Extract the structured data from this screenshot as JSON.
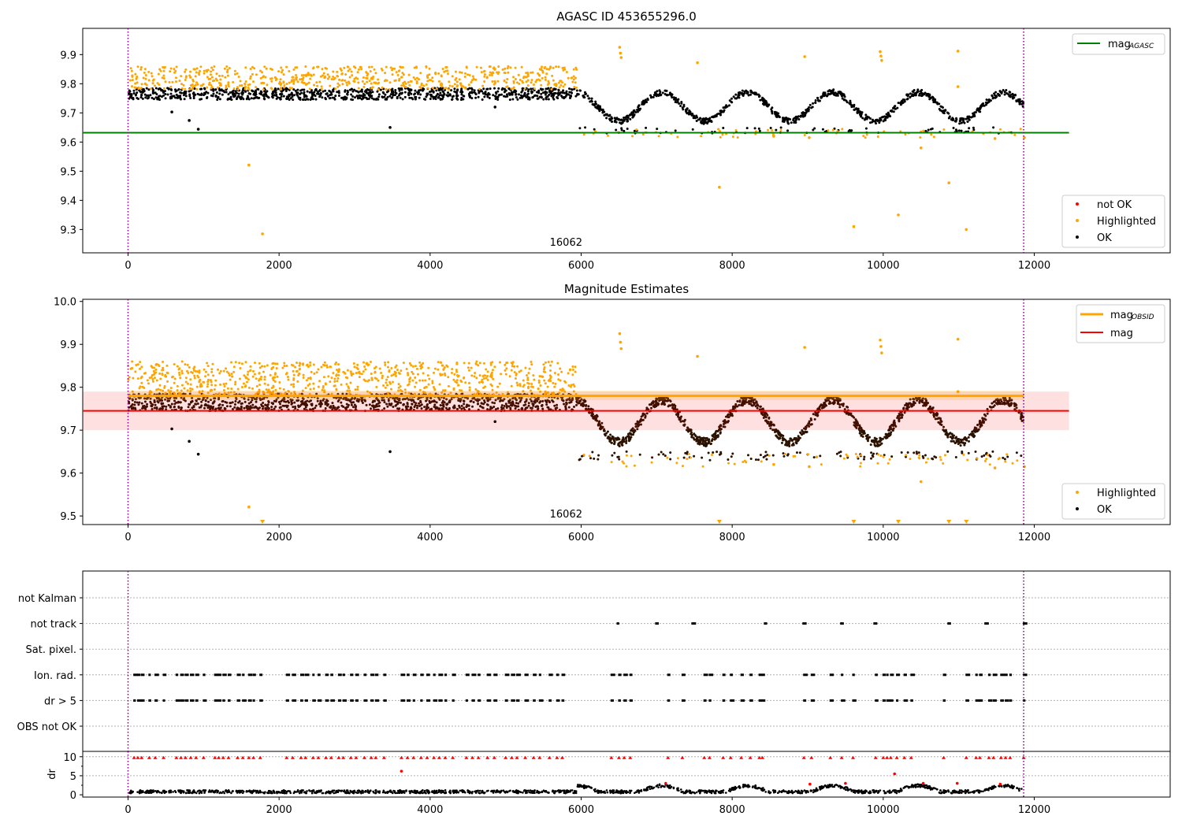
{
  "chart_data": [
    {
      "type": "scatter",
      "title": "AGASC ID 453655296.0",
      "x_ticks": [
        0,
        2000,
        4000,
        6000,
        8000,
        10000,
        12000
      ],
      "xlim": [
        -600,
        13800
      ],
      "ylim": [
        9.22,
        9.99
      ],
      "y_ticks": [
        "9.3",
        "9.4",
        "9.5",
        "9.6",
        "9.7",
        "9.8",
        "9.9"
      ],
      "annotation": "16062",
      "vlines": [
        0,
        11860
      ],
      "reference_lines": [
        {
          "name": "mag_AGASC",
          "value": 9.632,
          "x_range": [
            -600,
            12460
          ],
          "color": "#008000"
        }
      ],
      "legend_top": [
        "mag",
        "AGASC"
      ],
      "legend_bottom": [
        {
          "label": "not OK",
          "color": "#ff0000"
        },
        {
          "label": "Highlighted",
          "color": "#ffa500"
        },
        {
          "label": "OK",
          "color": "#000000"
        }
      ],
      "series": [
        {
          "name": "OK",
          "color": "#000000",
          "segments": [
            {
              "x_range": [
                0,
                5950
              ],
              "y_range": [
                9.745,
                9.785
              ]
            },
            {
              "x_range": [
                5950,
                11860
              ],
              "y_range": [
                9.63,
                9.77
              ]
            }
          ],
          "points": [
            [
              580,
              9.703
            ],
            [
              810,
              9.674
            ],
            [
              930,
              9.644
            ],
            [
              3470,
              9.65
            ],
            [
              4860,
              9.72
            ]
          ]
        },
        {
          "name": "Highlighted",
          "color": "#ffa500",
          "segments": [
            {
              "x_range": [
                0,
                5950
              ],
              "y_range": [
                9.78,
                9.86
              ]
            }
          ],
          "points": [
            [
              1600,
              9.521
            ],
            [
              1780,
              9.285
            ],
            [
              6510,
              9.925
            ],
            [
              6520,
              9.905
            ],
            [
              6530,
              9.89
            ],
            [
              7540,
              9.872
            ],
            [
              7830,
              9.445
            ],
            [
              8960,
              9.893
            ],
            [
              9610,
              9.31
            ],
            [
              9960,
              9.91
            ],
            [
              9970,
              9.895
            ],
            [
              9980,
              9.88
            ],
            [
              10200,
              9.35
            ],
            [
              10500,
              9.58
            ],
            [
              10870,
              9.46
            ],
            [
              10990,
              9.912
            ],
            [
              10990,
              9.79
            ],
            [
              11100,
              9.3
            ],
            [
              8550,
              9.62
            ],
            [
              9020,
              9.615
            ],
            [
              11480,
              9.612
            ],
            [
              11870,
              9.615
            ]
          ]
        }
      ]
    },
    {
      "type": "scatter",
      "title": "Magnitude Estimates",
      "x_ticks": [
        0,
        2000,
        4000,
        6000,
        8000,
        10000,
        12000
      ],
      "xlim": [
        -600,
        13800
      ],
      "ylim": [
        9.48,
        10.005
      ],
      "y_ticks": [
        "9.5",
        "9.6",
        "9.7",
        "9.8",
        "9.9",
        "10.0"
      ],
      "annotation": "16062",
      "vlines": [
        0,
        11860
      ],
      "reference_lines": [
        {
          "name": "mag_OBSID",
          "value": 9.78,
          "x_range": [
            0,
            11860
          ],
          "color": "#ffa500",
          "band": [
            9.77,
            9.792
          ]
        },
        {
          "name": "mag",
          "value": 9.745,
          "x_range": [
            -600,
            12460
          ],
          "color": "#ff0000",
          "band": [
            9.7,
            9.79
          ]
        }
      ],
      "legend_top": [
        {
          "label": "mag",
          "sub": "OBSID",
          "color": "#ffa500"
        },
        {
          "label": "mag",
          "sub": "",
          "color": "#ff0000"
        }
      ],
      "legend_bottom": [
        {
          "label": "Highlighted",
          "color": "#ffa500"
        },
        {
          "label": "OK",
          "color": "#000000"
        }
      ],
      "lower_limit_markers": [
        1780,
        7830,
        9610,
        10200,
        10870,
        11100
      ]
    },
    {
      "type": "scatter",
      "x_ticks": [
        0,
        2000,
        4000,
        6000,
        8000,
        10000,
        12000
      ],
      "xlim": [
        -600,
        13800
      ],
      "flag_rows": [
        "not Kalman",
        "not track",
        "Sat. pixel.",
        "Ion. rad.",
        "dr > 5",
        "OBS not OK"
      ],
      "dr_ylabel": "dr",
      "dr_ticks": [
        "0",
        "5",
        "10"
      ],
      "vlines": [
        0,
        11860
      ],
      "flag_events": {
        "not Kalman": [],
        "not track": [
          6480,
          6990,
          7470,
          8430,
          8940,
          9440,
          9880,
          10860,
          11350,
          11860
        ],
        "Sat. pixel.": [],
        "Ion. rad.": [
          80,
          130,
          180,
          280,
          360,
          470,
          640,
          700,
          760,
          830,
          900,
          1000,
          1150,
          1200,
          1260,
          1330,
          1450,
          1520,
          1600,
          1660,
          1750,
          2100,
          2180,
          2290,
          2350,
          2450,
          2520,
          2620,
          2690,
          2790,
          2850,
          2950,
          3020,
          3130,
          3220,
          3280,
          3390,
          3620,
          3700,
          3780,
          3880,
          3960,
          4050,
          4120,
          4200,
          4300,
          4480,
          4560,
          4640,
          4760,
          4850,
          5000,
          5080,
          5150,
          5260,
          5370,
          5450,
          5580,
          5680,
          5750,
          6400,
          6500,
          6570,
          6650,
          7150,
          7340,
          7630,
          7700,
          7880,
          7980,
          8120,
          8240,
          8360,
          8400,
          8950,
          9050,
          9300,
          9450,
          9600,
          9900,
          10000,
          10050,
          10100,
          10180,
          10280,
          10370,
          10800,
          11100,
          11230,
          11280,
          11400,
          11460,
          11560,
          11620,
          11680,
          11860
        ],
        "dr > 5": [
          80,
          130,
          180,
          280,
          360,
          470,
          640,
          700,
          760,
          830,
          900,
          1000,
          1150,
          1200,
          1260,
          1330,
          1450,
          1520,
          1600,
          1660,
          1750,
          2100,
          2180,
          2290,
          2350,
          2450,
          2520,
          2620,
          2690,
          2790,
          2850,
          2950,
          3020,
          3130,
          3220,
          3280,
          3390,
          3620,
          3700,
          3780,
          3880,
          3960,
          4050,
          4120,
          4200,
          4300,
          4480,
          4560,
          4640,
          4760,
          4850,
          5000,
          5080,
          5150,
          5260,
          5370,
          5450,
          5580,
          5680,
          5750,
          6400,
          6500,
          6570,
          6650,
          7150,
          7340,
          7630,
          7700,
          7880,
          7980,
          8120,
          8240,
          8360,
          8400,
          8950,
          9050,
          9300,
          9450,
          9600,
          9900,
          10000,
          10050,
          10100,
          10180,
          10280,
          10370,
          10800,
          11100,
          11230,
          11280,
          11400,
          11460,
          11560,
          11620,
          11680,
          11860
        ],
        "OBS not OK": []
      },
      "dr_series": {
        "ok_segments": [
          {
            "x_range": [
              0,
              5950
            ],
            "y_range": [
              0.3,
              1.6
            ]
          },
          {
            "x_range": [
              5950,
              11860
            ],
            "y_range": [
              0.3,
              3.0
            ]
          }
        ],
        "not_ok_clipped_x": [
          80,
          130,
          180,
          280,
          360,
          470,
          640,
          700,
          760,
          830,
          900,
          1000,
          1150,
          1200,
          1260,
          1330,
          1450,
          1520,
          1600,
          1660,
          1750,
          2100,
          2180,
          2290,
          2350,
          2450,
          2520,
          2620,
          2690,
          2790,
          2850,
          2950,
          3020,
          3130,
          3220,
          3280,
          3390,
          3620,
          3700,
          3780,
          3880,
          3960,
          4050,
          4120,
          4200,
          4300,
          4480,
          4560,
          4640,
          4760,
          4850,
          5000,
          5080,
          5150,
          5260,
          5370,
          5450,
          5580,
          5680,
          5750,
          6400,
          6500,
          6570,
          6650,
          7150,
          7340,
          7630,
          7700,
          7880,
          7980,
          8120,
          8240,
          8360,
          8400,
          8950,
          9050,
          9300,
          9450,
          9600,
          9900,
          10000,
          10050,
          10100,
          10180,
          10280,
          10370,
          10800,
          11100,
          11230,
          11280,
          11400,
          11460,
          11560,
          11620,
          11680,
          11860
        ],
        "not_ok_points": [
          [
            3620,
            6.2
          ],
          [
            10150,
            5.5
          ],
          [
            7120,
            3.0
          ],
          [
            9030,
            2.8
          ],
          [
            9500,
            3.0
          ],
          [
            10530,
            3.0
          ],
          [
            10980,
            3.0
          ],
          [
            11550,
            2.8
          ]
        ]
      }
    }
  ]
}
